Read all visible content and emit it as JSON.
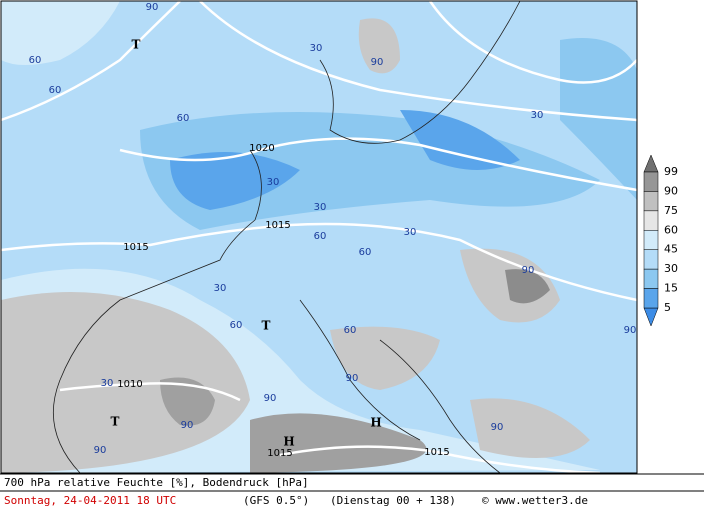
{
  "map": {
    "isobar_labels": [
      "1020",
      "1015",
      "1015",
      "1010",
      "1015",
      "1015"
    ],
    "pressure_centers": [
      "T",
      "T",
      "T",
      "H",
      "H"
    ],
    "humidity_labels": [
      "90",
      "60",
      "60",
      "30",
      "90",
      "60",
      "30",
      "30",
      "30",
      "30",
      "60",
      "60",
      "30",
      "60",
      "90",
      "90",
      "30",
      "90",
      "90",
      "90",
      "90",
      "60",
      "90"
    ]
  },
  "legend": {
    "levels": [
      99,
      90,
      75,
      60,
      45,
      30,
      15,
      5
    ]
  },
  "footer": {
    "title": "700 hPa relative Feuchte [%], Bodendruck [hPa]",
    "date": "Sonntag, 24-04-2011  18 UTC",
    "model": "(GFS 0.5°)",
    "run": "(Dienstag 00 + 138)",
    "credit": "© www.wetter3.de"
  }
}
